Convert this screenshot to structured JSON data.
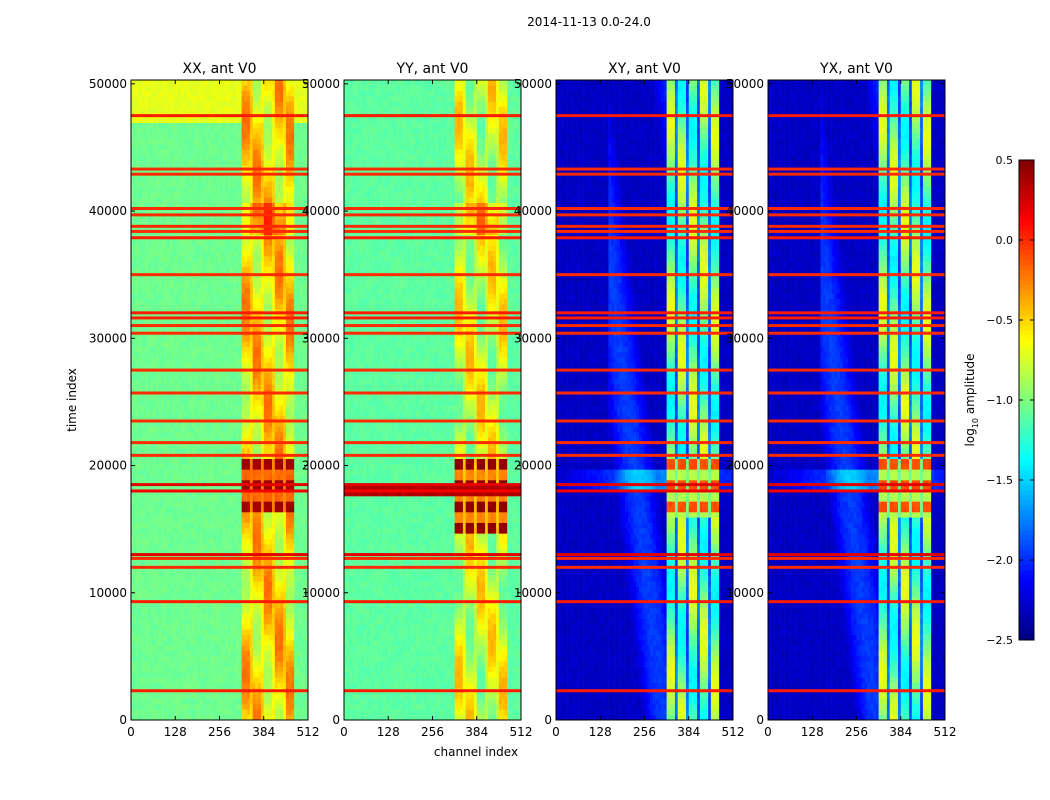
{
  "figure": {
    "suptitle": "2014-11-13 0.0-24.0",
    "xlabel": "channel index",
    "ylabel": "time index"
  },
  "chart_data": {
    "type": "heatmap",
    "x_ticks": [
      0,
      128,
      256,
      384,
      512
    ],
    "y_ticks": [
      0,
      10000,
      20000,
      30000,
      40000,
      50000
    ],
    "xlim": [
      0,
      512
    ],
    "ylim": [
      0,
      50300
    ],
    "colormap": "jet",
    "panels": [
      {
        "title": "XX, ant V0",
        "profile": "xx",
        "background_log_amplitude": -1.05,
        "band_log_amplitude": -0.55,
        "band_channels": [
          320,
          470
        ],
        "bright_time_range": [
          16500,
          20500
        ],
        "bright_log_amplitude": 0.4
      },
      {
        "title": "YY, ant V0",
        "profile": "yy",
        "background_log_amplitude": -1.1,
        "band_log_amplitude": -0.75,
        "band_channels": [
          320,
          470
        ],
        "bright_time_range": [
          14500,
          20500
        ],
        "bright_log_amplitude": 0.45
      },
      {
        "title": "XY, ant V0",
        "profile": "cross",
        "background_log_amplitude": -2.3,
        "band_log_amplitude": -1.35,
        "band_channels": [
          320,
          470
        ],
        "bright_time_range": [
          16000,
          20500
        ],
        "bright_log_amplitude": -0.1
      },
      {
        "title": "YX, ant V0",
        "profile": "cross",
        "background_log_amplitude": -2.3,
        "band_log_amplitude": -1.35,
        "band_channels": [
          320,
          470
        ],
        "bright_time_range": [
          16000,
          20500
        ],
        "bright_log_amplitude": -0.1
      }
    ],
    "flagged_rows": [
      {
        "time": 2300,
        "log_amplitude": 0.05
      },
      {
        "time": 9300,
        "log_amplitude": 0.05
      },
      {
        "time": 12000,
        "log_amplitude": 0.0
      },
      {
        "time": 12700,
        "log_amplitude": 0.0
      },
      {
        "time": 13000,
        "log_amplitude": 0.2
      },
      {
        "time": 18000,
        "log_amplitude": 0.15
      },
      {
        "time": 18500,
        "log_amplitude": 0.2
      },
      {
        "time": 20800,
        "log_amplitude": 0.0
      },
      {
        "time": 21800,
        "log_amplitude": 0.0
      },
      {
        "time": 23500,
        "log_amplitude": 0.0
      },
      {
        "time": 25700,
        "log_amplitude": 0.0
      },
      {
        "time": 27500,
        "log_amplitude": 0.0
      },
      {
        "time": 30400,
        "log_amplitude": 0.0
      },
      {
        "time": 31000,
        "log_amplitude": 0.0
      },
      {
        "time": 31600,
        "log_amplitude": 0.05
      },
      {
        "time": 32000,
        "log_amplitude": 0.05
      },
      {
        "time": 35000,
        "log_amplitude": 0.0
      },
      {
        "time": 37900,
        "log_amplitude": 0.05
      },
      {
        "time": 38400,
        "log_amplitude": 0.0
      },
      {
        "time": 38800,
        "log_amplitude": 0.0
      },
      {
        "time": 39700,
        "log_amplitude": 0.0
      },
      {
        "time": 40200,
        "log_amplitude": 0.0
      },
      {
        "time": 42900,
        "log_amplitude": 0.0
      },
      {
        "time": 43300,
        "log_amplitude": 0.0
      },
      {
        "time": 47500,
        "log_amplitude": 0.05
      }
    ],
    "colorbar": {
      "label": "log",
      "label_sub": "10",
      "label_rest": " amplitude",
      "vmin": -2.5,
      "vmax": 0.5,
      "ticks": [
        {
          "value": 0.5,
          "label": "0.5"
        },
        {
          "value": 0.0,
          "label": "0.0"
        },
        {
          "value": -0.5,
          "label": "−0.5"
        },
        {
          "value": -1.0,
          "label": "−1.0"
        },
        {
          "value": -1.5,
          "label": "−1.5"
        },
        {
          "value": -2.0,
          "label": "−2.0"
        },
        {
          "value": -2.5,
          "label": "−2.5"
        }
      ]
    }
  }
}
